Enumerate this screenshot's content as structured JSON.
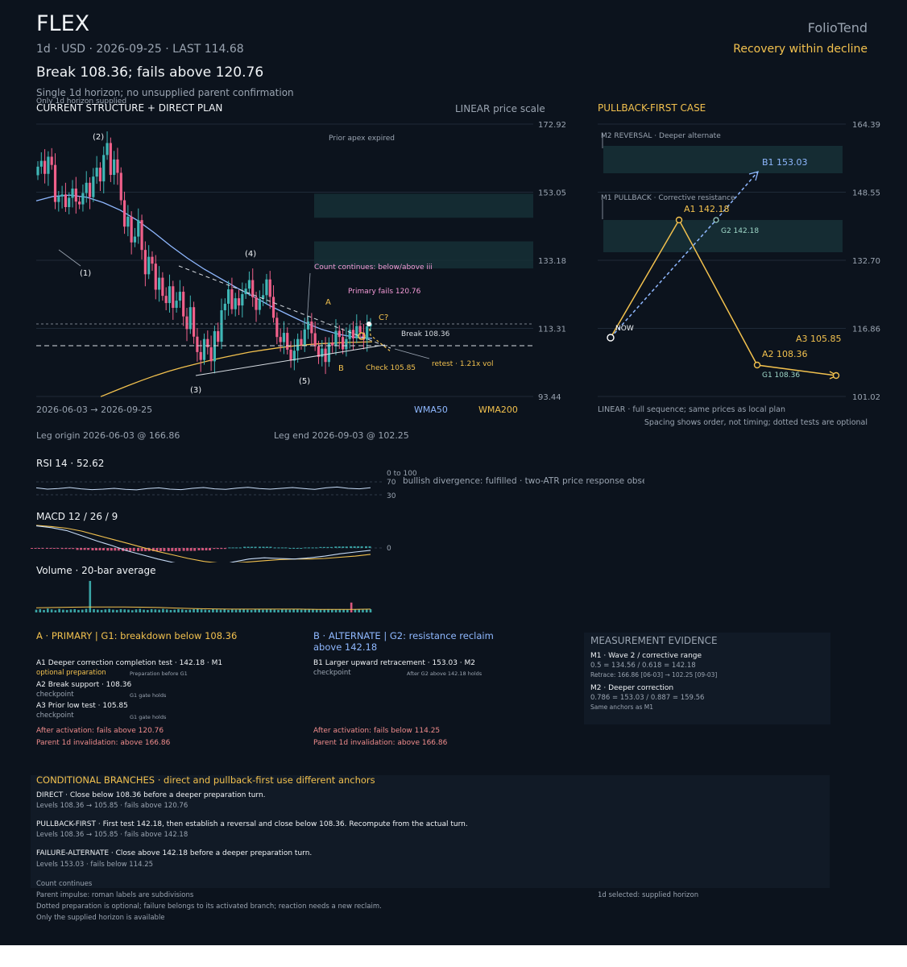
{
  "header": {
    "ticker": "FLEX",
    "meta": "1d · USD · 2026-09-25 · LAST 114.68",
    "headline": "Break 108.36; fails above 120.76",
    "subline": "Single 1d horizon; no unsupplied parent confirmation",
    "subnote": "Only 1d horizon supplied",
    "brand": "FolioTend",
    "regime": "Recovery within decline"
  },
  "main_chart": {
    "title": "CURRENT STRUCTURE + DIRECT PLAN",
    "scale_label": "LINEAR price scale",
    "date_range": "2026-06-03 → 2026-09-25",
    "legend": [
      {
        "name": "WMA50",
        "color": "#8fb8ff"
      },
      {
        "name": "WMA200",
        "color": "#f2c14e"
      }
    ],
    "leg_origin": "Leg origin 2026-06-03 @ 166.86",
    "leg_end": "Leg end 2026-09-03 @ 102.25",
    "annotations": {
      "prior_apex": "Prior apex expired",
      "count_continues": "Count continues: below/above iii",
      "primary_fails": "Primary fails 120.76",
      "break": "Break 108.36",
      "check": "Check 105.85",
      "retest": "retest · 1.21x vol",
      "A": "A",
      "B": "B",
      "C": "C?"
    },
    "wave_labels": [
      "(1)",
      "(2)",
      "(3)",
      "(4)",
      "(5)"
    ]
  },
  "chart_data": [
    {
      "type": "candlestick",
      "title": "CURRENT STRUCTURE + DIRECT PLAN",
      "x_range": [
        "2026-06-03",
        "2026-09-25"
      ],
      "ylim": [
        93.44,
        172.92
      ],
      "yticks": [
        "172.92",
        "153.05",
        "133.18",
        "113.31",
        "93.44"
      ],
      "scale": "linear",
      "grid": true,
      "series": [
        {
          "name": "WMA50",
          "values": [
            150.5,
            151.8,
            152.2,
            151.6,
            150.0,
            147.8,
            144.9,
            141.3,
            137.4,
            133.8,
            130.6,
            127.8,
            125.0,
            122.4,
            119.7,
            117.3,
            115.0,
            113.0,
            111.6,
            110.7,
            110.4
          ]
        },
        {
          "name": "WMA200",
          "values": [
            93.4,
            95.0,
            96.6,
            98.1,
            99.5,
            100.8,
            101.9,
            102.9,
            103.9,
            104.8,
            105.6,
            106.4,
            107.0,
            107.6,
            108.1,
            108.5,
            108.8,
            109.0,
            109.2,
            109.3,
            109.4
          ]
        }
      ],
      "closes": [
        160.5,
        162.2,
        158.4,
        163.4,
        161.0,
        150.2,
        151.8,
        152.4,
        148.7,
        151.4,
        154.1,
        150.3,
        149.5,
        152.8,
        155.8,
        151.6,
        157.6,
        160.2,
        156.2,
        163.9,
        167.4,
        158.1,
        162.6,
        158.7,
        150.7,
        143.0,
        145.9,
        138.4,
        140.1,
        144.9,
        136.2,
        129.1,
        134.2,
        132.2,
        124.6,
        128.1,
        122.8,
        120.7,
        125.6,
        119.3,
        121.4,
        124.0,
        116.8,
        113.1,
        119.5,
        110.9,
        106.4,
        104.1,
        110.2,
        107.8,
        103.7,
        112.5,
        109.4,
        118.6,
        120.5,
        124.7,
        118.9,
        122.1,
        120.0,
        123.3,
        124.9,
        127.4,
        122.4,
        118.7,
        121.9,
        123.0,
        127.6,
        122.5,
        116.4,
        110.8,
        109.3,
        112.0,
        107.1,
        103.9,
        106.8,
        110.2,
        108.5,
        113.0,
        115.3,
        111.9,
        108.1,
        105.0,
        107.4,
        103.5,
        109.1,
        108.3,
        112.6,
        110.8,
        107.2,
        110.2,
        112.9,
        110.4,
        114.0,
        112.1,
        110.0,
        113.9,
        114.7
      ],
      "levels": [
        {
          "name": "Primary fails",
          "value": 120.76
        },
        {
          "name": "Break",
          "value": 108.36
        },
        {
          "name": "Check",
          "value": 105.85
        }
      ],
      "zones": [
        [
          145.6,
          152.6
        ],
        [
          130.8,
          138.7
        ]
      ],
      "pivots": [
        {
          "label": "(1)",
          "date": "2026-06-10"
        },
        {
          "label": "(2)",
          "date": "2026-06-27"
        },
        {
          "label": "(3)",
          "date": "2026-07-24"
        },
        {
          "label": "(4)",
          "date": "2026-08-19"
        },
        {
          "label": "(5)",
          "date": "2026-09-03",
          "value": 102.25
        }
      ]
    },
    {
      "type": "line",
      "title": "PULLBACK-FIRST CASE",
      "ylim": [
        101.02,
        164.39
      ],
      "yticks": [
        "164.39",
        "148.55",
        "132.70",
        "116.86",
        "101.02"
      ],
      "scale": "linear",
      "series": [
        {
          "name": "Primary path",
          "points": [
            {
              "label": "NOW",
              "value": 114.68
            },
            {
              "label": "A1 142.18",
              "value": 142.18
            },
            {
              "label": "A2 108.36",
              "value": 108.36
            },
            {
              "label": "A3 105.85",
              "value": 105.85
            }
          ]
        },
        {
          "name": "Alternate",
          "points": [
            {
              "label": "NOW",
              "value": 114.68
            },
            {
              "label": "G2 142.18",
              "value": 142.18
            },
            {
              "label": "B1 153.03",
              "value": 153.03
            }
          ]
        }
      ],
      "zones": [
        [
          153.9,
          161.7
        ],
        [
          134.1,
          143.5
        ]
      ],
      "zone_labels": [
        "M2 REVERSAL · Deeper alternate",
        "M1 PULLBACK · Corrective resistance"
      ],
      "gate_label": "G1 108.36",
      "footer": "LINEAR · full sequence; same prices as local plan",
      "footnote": "Spacing shows order, not timing; dotted tests are optional"
    },
    {
      "type": "line",
      "title": "RSI 14 · 52.62",
      "ylim": [
        0,
        100
      ],
      "levels": [
        70,
        30
      ],
      "range_label": "0 to 100",
      "note": "bullish divergence: fulfilled · two-ATR price response observed",
      "values": [
        52,
        47,
        49,
        53,
        48,
        45,
        47,
        50,
        46,
        44,
        49,
        52,
        47,
        45,
        50,
        53,
        48,
        46,
        51,
        54,
        49,
        47,
        50,
        53,
        49,
        46,
        52,
        55,
        50,
        48,
        52.62
      ]
    },
    {
      "type": "line",
      "title": "MACD 12 / 26 / 9",
      "zero_label": "0",
      "series": [
        {
          "name": "MACD",
          "values": [
            3.8,
            3.5,
            3.0,
            2.1,
            1.2,
            0.4,
            -0.5,
            -1.2,
            -1.9,
            -2.5,
            -3.0,
            -3.3,
            -3.0,
            -2.4,
            -1.9,
            -1.7,
            -1.8,
            -1.9,
            -1.7,
            -1.4,
            -1.0,
            -0.7,
            -0.4
          ]
        },
        {
          "name": "Signal",
          "values": [
            3.9,
            3.7,
            3.4,
            2.9,
            2.2,
            1.5,
            0.8,
            0.1,
            -0.6,
            -1.2,
            -1.8,
            -2.3,
            -2.6,
            -2.6,
            -2.4,
            -2.2,
            -2.0,
            -1.9,
            -1.9,
            -1.8,
            -1.6,
            -1.4,
            -1.1
          ]
        }
      ],
      "histogram": [
        -0.1,
        -0.2,
        -0.4,
        -0.8,
        -1.0,
        -1.1,
        -1.3,
        -1.3,
        -1.3,
        -1.3,
        -1.2,
        -1.0,
        -0.4,
        0.2,
        0.5,
        0.5,
        0.2,
        0.0,
        0.2,
        0.4,
        0.6,
        0.7,
        0.7
      ]
    },
    {
      "type": "bar",
      "title": "Volume · 20-bar average",
      "values": [
        1.0,
        1.2,
        0.9,
        1.4,
        1.1,
        0.8,
        1.3,
        1.0,
        0.9,
        1.1,
        1.2,
        0.9,
        1.0,
        1.3,
        11.5,
        1.2,
        1.0,
        0.9,
        1.1,
        1.3,
        1.0,
        0.9,
        1.2,
        1.1,
        1.0,
        0.8,
        1.1,
        1.3,
        1.0,
        0.9,
        1.2,
        1.1,
        1.0,
        1.3,
        1.1,
        0.9,
        1.0,
        1.2,
        1.1,
        0.9,
        1.0,
        1.2,
        1.4,
        1.1,
        1.0,
        0.9,
        1.3,
        1.1,
        1.0,
        1.2,
        0.9,
        1.1,
        1.0,
        1.3,
        1.2,
        1.0,
        0.9,
        1.1,
        1.2,
        1.0,
        1.1,
        1.3,
        1.0,
        0.9,
        1.2,
        1.1,
        1.0,
        1.2,
        1.1,
        1.0,
        1.3,
        1.1,
        1.2,
        1.0,
        1.1,
        1.0,
        1.2,
        1.1,
        1.0,
        1.2,
        1.1,
        1.0,
        3.6,
        1.1,
        1.2,
        1.0,
        1.1,
        1.2
      ],
      "average": [
        1.7,
        1.8,
        1.9,
        2.0,
        2.0,
        2.0,
        1.9,
        1.8,
        1.6,
        1.4,
        1.3,
        1.2,
        1.2,
        1.2,
        1.2,
        1.2,
        1.1,
        1.1,
        1.1,
        1.2
      ]
    }
  ],
  "right_chart": {
    "title": "PULLBACK-FIRST CASE",
    "zone_m2": "M2 REVERSAL · Deeper alternate",
    "zone_m1": "M1 PULLBACK · Corrective resistance",
    "now": "NOW",
    "a1": "A1 142.18",
    "a2": "A2 108.36",
    "a3": "A3 105.85",
    "b1": "B1 153.03",
    "g1": "G1 108.36",
    "g2": "G2 142.18",
    "footer": "LINEAR · full sequence; same prices as local plan",
    "footnote": "Spacing shows order, not timing; dotted tests are optional"
  },
  "colors": {
    "background": "#0c131d",
    "bull": "#3fb6b6",
    "bear": "#f0608a",
    "wma50": "#8fb8ff",
    "wma200": "#f2c14e",
    "accent": "#f2c14e",
    "alternate": "#8fb8ff",
    "warning": "#f08c8c",
    "count": "#f59bd8"
  },
  "scenarios": {
    "primary": {
      "title": "A · PRIMARY | G1: breakdown below 108.36",
      "items": [
        {
          "title": "A1 Deeper correction completion test · 142.18 · M1",
          "tag": "optional preparation",
          "note": "Preparation before G1"
        },
        {
          "title": "A2 Break support · 108.36",
          "tag": "checkpoint",
          "note": "G1 gate holds"
        },
        {
          "title": "A3 Prior low test · 105.85",
          "tag": "checkpoint",
          "note": "G1 gate holds"
        }
      ],
      "fails": "After activation: fails above 120.76",
      "invalidation": "Parent 1d invalidation: above 166.86"
    },
    "alternate": {
      "title": "B · ALTERNATE | G2: resistance reclaim above 142.18",
      "items": [
        {
          "title": "B1 Larger upward retracement · 153.03 · M2",
          "tag": "checkpoint",
          "note": "After G2 above 142.18 holds"
        }
      ],
      "fails": "After activation: fails below 114.25",
      "invalidation": "Parent 1d invalidation: above 166.86"
    }
  },
  "evidence": {
    "title": "MEASUREMENT EVIDENCE",
    "m1_title": "M1 · Wave 2 / corrective range",
    "m1_calc": "0.5 = 134.56 / 0.618 = 142.18",
    "m1_retrace": "Retrace: 166.86 [06-03] → 102.25 [09-03]",
    "m2_title": "M2 · Deeper correction",
    "m2_calc": "0.786 = 153.03 / 0.887 = 159.56",
    "m2_note": "Same anchors as M1"
  },
  "branches": {
    "title": "CONDITIONAL BRANCHES · direct and pullback-first use different anchors",
    "items": [
      {
        "title": "DIRECT · Close below 108.36 before a deeper preparation turn.",
        "levels": "Levels 108.36 → 105.85 · fails above 120.76"
      },
      {
        "title": "PULLBACK-FIRST · First test 142.18, then establish a reversal and close below 108.36. Recompute from the actual turn.",
        "levels": "Levels 108.36 → 105.85 · fails above 142.18"
      },
      {
        "title": "FAILURE-ALTERNATE · Close above 142.18 before a deeper preparation turn.",
        "levels": "Levels 153.03 · fails below 114.25"
      }
    ]
  },
  "footer": {
    "count": "Count continues",
    "parent": "Parent impulse: roman labels are subdivisions",
    "dotted": "Dotted preparation is optional; failure belongs to its activated branch; reaction needs a new reclaim.",
    "only": "Only the supplied horizon is available",
    "selected": "1d selected: supplied horizon"
  }
}
